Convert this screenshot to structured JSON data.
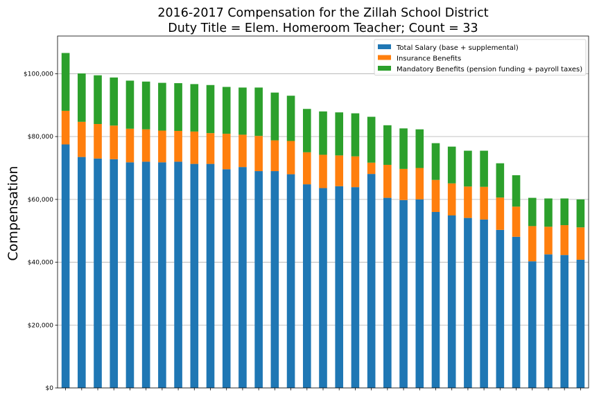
{
  "chart_data": {
    "type": "bar",
    "stacked": true,
    "title_lines": [
      "2016-2017 Compensation for the Zillah School District",
      "Duty Title = Elem. Homeroom Teacher; Count = 33"
    ],
    "xlabel": "",
    "ylabel": "Compensation",
    "ylim": [
      0,
      112000
    ],
    "yticks": [
      0,
      20000,
      40000,
      60000,
      80000,
      100000
    ],
    "ytick_labels": [
      "$0",
      "$20,000",
      "$40,000",
      "$60,000",
      "$80,000",
      "$100,000"
    ],
    "grid": "horizontal",
    "legend_position": "top-right",
    "series": [
      {
        "name": "Total Salary (base + supplemental)",
        "color": "#1f77b4",
        "values": [
          77500,
          73500,
          73000,
          72800,
          71800,
          72000,
          71800,
          72000,
          71300,
          71300,
          69600,
          70300,
          69000,
          69000,
          68000,
          64800,
          63600,
          64200,
          63900,
          68100,
          60500,
          59800,
          60000,
          56000,
          54900,
          54100,
          53600,
          50300,
          48100,
          40300,
          42500,
          42300,
          40800
        ]
      },
      {
        "name": "Insurance Benefits",
        "color": "#ff7f0e",
        "values": [
          10700,
          11200,
          11000,
          10700,
          10700,
          10300,
          10100,
          9800,
          10300,
          9800,
          11300,
          10300,
          11200,
          9800,
          10600,
          10200,
          10600,
          9800,
          9800,
          3600,
          10500,
          9900,
          10000,
          10200,
          10200,
          10000,
          10400,
          10300,
          9600,
          11200,
          8800,
          9500,
          10300
        ]
      },
      {
        "name": "Mandatory Benefits (pension funding + payroll taxes)",
        "color": "#2ca02c",
        "values": [
          18400,
          15400,
          15500,
          15300,
          15300,
          15200,
          15200,
          15200,
          15100,
          15300,
          14900,
          15000,
          15400,
          15200,
          14400,
          13800,
          13800,
          13700,
          13700,
          14600,
          12600,
          12900,
          12300,
          11700,
          11700,
          11400,
          11500,
          10900,
          10000,
          9000,
          9000,
          8500,
          8900
        ]
      }
    ]
  }
}
